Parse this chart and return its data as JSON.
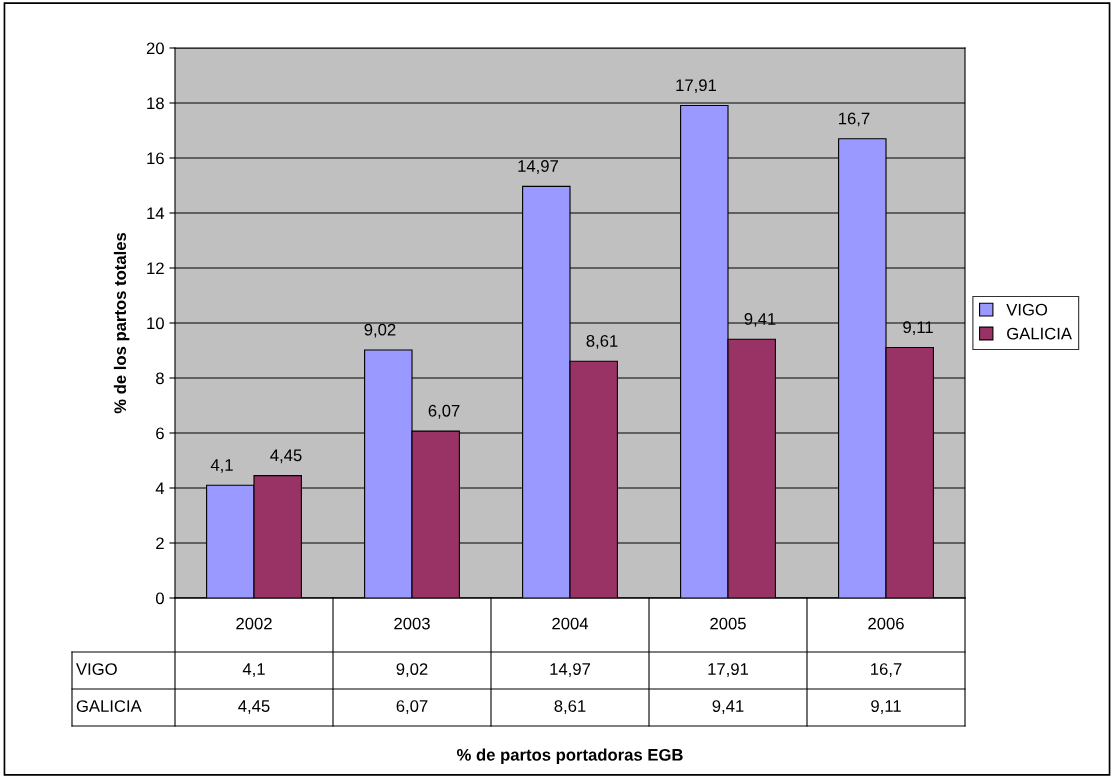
{
  "chart_data": {
    "type": "bar",
    "annotations": [
      "% de partos portadoras EGB"
    ],
    "ylabel": "% de los partos totales",
    "categories": [
      "2002",
      "2003",
      "2004",
      "2005",
      "2006"
    ],
    "series": [
      {
        "name": "VIGO",
        "color": "#9999ff",
        "values": [
          4.1,
          9.02,
          14.97,
          17.91,
          16.7
        ],
        "value_labels": [
          "4,1",
          "9,02",
          "14,97",
          "17,91",
          "16,7"
        ]
      },
      {
        "name": "GALICIA",
        "color": "#993366",
        "values": [
          4.45,
          6.07,
          8.61,
          9.41,
          9.11
        ],
        "value_labels": [
          "4,45",
          "6,07",
          "8,61",
          "9,41",
          "9,11"
        ]
      }
    ],
    "ylim": [
      0,
      20
    ],
    "yticks": [
      0,
      2,
      4,
      6,
      8,
      10,
      12,
      14,
      16,
      18,
      20
    ],
    "grid": "y",
    "legend": "right"
  }
}
